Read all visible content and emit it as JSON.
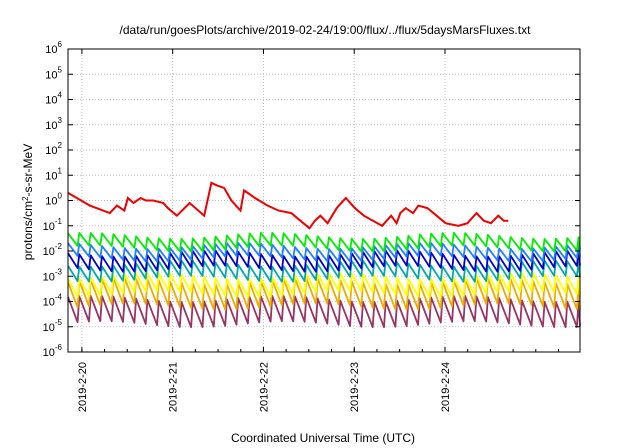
{
  "chart_data": {
    "type": "line",
    "title": "/data/run/goesPlots/archive/2019-02-24/19:00/flux/../flux/5daysMarsFluxes.txt",
    "xlabel": "Coordinated Universal Time (UTC)",
    "ylabel": {
      "main": "protons/cm",
      "sup": "2",
      "rest": "-s-sr-MeV"
    },
    "y_scale": "log",
    "ylim_exponents": [
      -6,
      6
    ],
    "y_ticks": [
      {
        "base": "10",
        "exp": "-6"
      },
      {
        "base": "10",
        "exp": "-5"
      },
      {
        "base": "10",
        "exp": "-4"
      },
      {
        "base": "10",
        "exp": "-3"
      },
      {
        "base": "10",
        "exp": "-2"
      },
      {
        "base": "10",
        "exp": "-1"
      },
      {
        "base": "10",
        "exp": "0"
      },
      {
        "base": "10",
        "exp": "1"
      },
      {
        "base": "10",
        "exp": "2"
      },
      {
        "base": "10",
        "exp": "3"
      },
      {
        "base": "10",
        "exp": "4"
      },
      {
        "base": "10",
        "exp": "5"
      },
      {
        "base": "10",
        "exp": "6"
      }
    ],
    "xlim_days": [
      "2019-02-19 03:40",
      "2019-02-24 19:00"
    ],
    "x_ticks": [
      "2019-2-20",
      "2019-2-21",
      "2019-2-22",
      "2019-2-23",
      "2019-2-24"
    ],
    "grid": true,
    "legend": "none",
    "series": [
      {
        "color": "#ee0000",
        "log10_values_sampled": {
          "x_days": [
            0.0,
            0.24,
            0.46,
            0.54,
            0.62,
            0.66,
            0.72,
            0.8,
            0.86,
            0.94,
            1.05,
            1.1,
            1.2,
            1.34,
            1.5,
            1.58,
            1.64,
            1.72,
            1.8,
            1.9,
            1.94,
            2.06,
            2.2,
            2.32,
            2.46,
            2.56,
            2.66,
            2.72,
            2.78,
            2.86,
            2.96,
            3.06,
            3.16,
            3.26,
            3.36,
            3.46,
            3.56,
            3.62,
            3.66,
            3.72,
            3.8,
            3.86,
            3.96,
            4.06,
            4.16,
            4.3,
            4.4,
            4.5,
            4.58,
            4.66,
            4.74,
            4.8,
            4.85
          ],
          "log10_flux": [
            0.3,
            -0.2,
            -0.5,
            -0.2,
            -0.4,
            0.1,
            -0.1,
            0.1,
            0.0,
            0.0,
            -0.1,
            -0.3,
            -0.6,
            -0.1,
            -0.6,
            0.7,
            0.6,
            0.5,
            0.0,
            -0.4,
            0.4,
            0.1,
            -0.2,
            -0.4,
            -0.5,
            -0.8,
            -1.1,
            -0.8,
            -0.6,
            -0.9,
            -0.3,
            0.1,
            -0.3,
            -0.6,
            -0.8,
            -1.0,
            -0.6,
            -0.9,
            -0.5,
            -0.3,
            -0.5,
            -0.2,
            -0.3,
            -0.6,
            -0.9,
            -1.0,
            -0.9,
            -0.5,
            -0.8,
            -0.9,
            -0.6,
            -0.8,
            -0.8
          ]
        }
      },
      {
        "color": "#00ee00",
        "high_log10": -1.4,
        "low_log10": -1.9,
        "oscillation": "sawtooth"
      },
      {
        "color": "#2080ff",
        "high_log10": -1.8,
        "low_log10": -2.3,
        "oscillation": "sawtooth"
      },
      {
        "color": "#0000cc",
        "high_log10": -2.1,
        "low_log10": -2.7,
        "oscillation": "sawtooth"
      },
      {
        "color": "#00aaaa",
        "high_log10": -2.5,
        "low_log10": -3.1,
        "oscillation": "sawtooth"
      },
      {
        "color": "#ffff00",
        "high_log10": -3.0,
        "low_log10": -3.7,
        "oscillation": "sawtooth"
      },
      {
        "color": "#eeaa00",
        "high_log10": -3.2,
        "low_log10": -4.2,
        "oscillation": "sawtooth"
      },
      {
        "color": "#993366",
        "high_log10": -3.9,
        "low_log10": -4.9,
        "oscillation": "sawtooth"
      }
    ]
  }
}
